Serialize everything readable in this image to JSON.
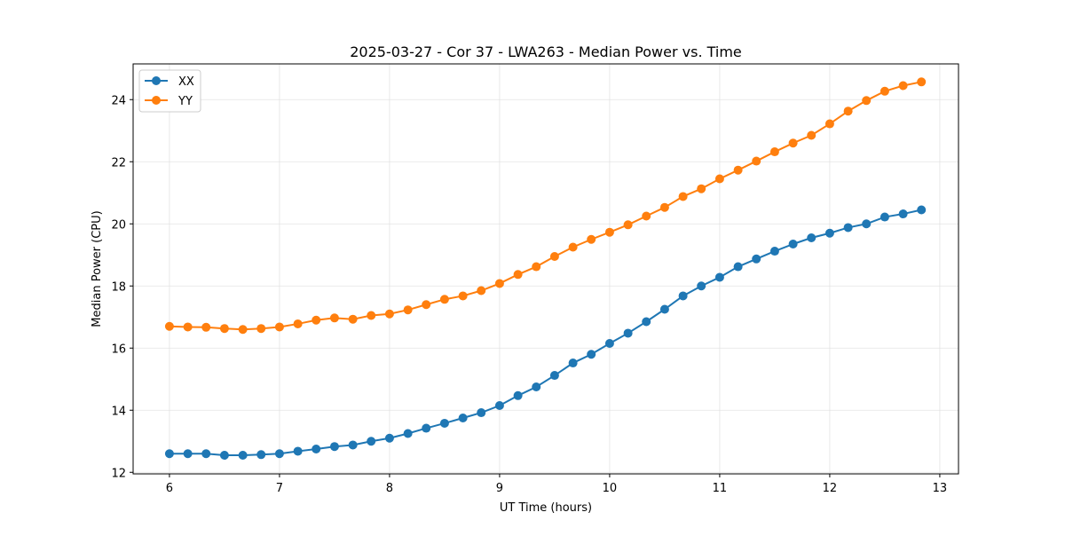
{
  "chart_data": {
    "type": "line",
    "title": "2025-03-27 - Cor 37 - LWA263 - Median Power vs. Time",
    "xlabel": "UT Time (hours)",
    "ylabel": "Median Power (CPU)",
    "xlim": [
      5.67,
      13.17
    ],
    "ylim": [
      11.95,
      25.15
    ],
    "xticks": [
      6,
      7,
      8,
      9,
      10,
      11,
      12,
      13
    ],
    "yticks": [
      12,
      14,
      16,
      18,
      20,
      22,
      24
    ],
    "grid": true,
    "legend_position": "top-left",
    "x": [
      6.0,
      6.167,
      6.333,
      6.5,
      6.667,
      6.833,
      7.0,
      7.167,
      7.333,
      7.5,
      7.667,
      7.833,
      8.0,
      8.167,
      8.333,
      8.5,
      8.667,
      8.833,
      9.0,
      9.167,
      9.333,
      9.5,
      9.667,
      9.833,
      10.0,
      10.167,
      10.333,
      10.5,
      10.667,
      10.833,
      11.0,
      11.167,
      11.333,
      11.5,
      11.667,
      11.833,
      12.0,
      12.167,
      12.333,
      12.5,
      12.667,
      12.833
    ],
    "series": [
      {
        "name": "XX",
        "color": "#1f77b4",
        "values": [
          12.6,
          12.6,
          12.6,
          12.55,
          12.55,
          12.57,
          12.6,
          12.68,
          12.75,
          12.83,
          12.88,
          13.0,
          13.1,
          13.25,
          13.42,
          13.58,
          13.75,
          13.92,
          14.15,
          14.47,
          14.75,
          15.12,
          15.52,
          15.8,
          16.15,
          16.48,
          16.85,
          17.25,
          17.68,
          18.0,
          18.28,
          18.62,
          18.87,
          19.12,
          19.35,
          19.55,
          19.7,
          19.88,
          20.0,
          20.22,
          20.32,
          20.45
        ]
      },
      {
        "name": "YY",
        "color": "#ff7f0e",
        "values": [
          16.7,
          16.68,
          16.67,
          16.63,
          16.6,
          16.63,
          16.68,
          16.78,
          16.9,
          16.97,
          16.93,
          17.05,
          17.1,
          17.23,
          17.4,
          17.57,
          17.68,
          17.85,
          18.08,
          18.37,
          18.62,
          18.95,
          19.25,
          19.5,
          19.73,
          19.97,
          20.25,
          20.53,
          20.88,
          21.13,
          21.45,
          21.73,
          22.02,
          22.32,
          22.6,
          22.85,
          23.22,
          23.63,
          23.97,
          24.27,
          24.45,
          24.57
        ]
      }
    ]
  }
}
